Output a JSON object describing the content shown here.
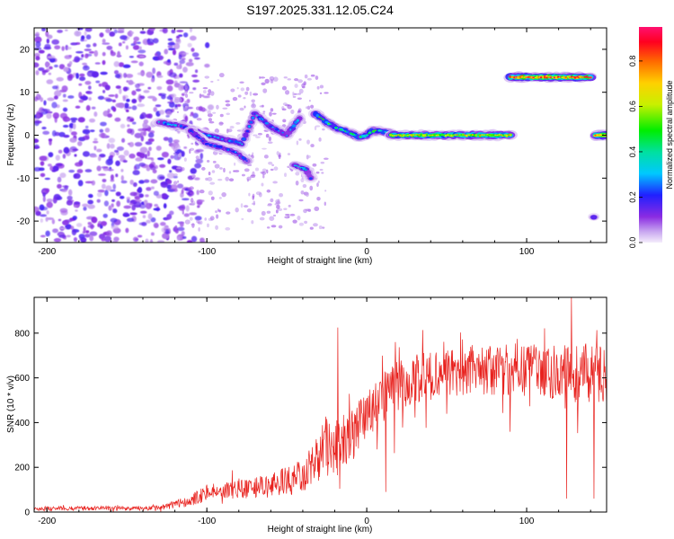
{
  "title": "S197.2025.331.12.05.C24",
  "chart_data": [
    {
      "type": "heatmap",
      "name": "spectrogram",
      "xlabel": "Height of straight line (km)",
      "ylabel": "Frequency (Hz)",
      "xlim": [
        -208,
        150
      ],
      "ylim": [
        -25,
        25
      ],
      "xticks": [
        -200,
        -100,
        0,
        100
      ],
      "yticks": [
        -20,
        -10,
        0,
        10,
        20
      ],
      "xtick_labels": [
        "-200",
        "-100",
        "0",
        "100"
      ],
      "ytick_labels": [
        "-20",
        "-10",
        "0",
        "10",
        "20"
      ],
      "colorbar": {
        "label": "Normalized spectral amplitude",
        "range": [
          0,
          0.95
        ],
        "ticks": [
          0.0,
          0.2,
          0.4,
          0.6,
          0.8
        ],
        "tick_labels": [
          "0.0",
          "0.2",
          "0.4",
          "0.6",
          "0.8"
        ]
      },
      "tracks": [
        {
          "name": "main-track",
          "x": [
            -130,
            -115,
            -100,
            -88,
            -78,
            -70,
            -60,
            -50,
            -42
          ],
          "y": [
            3,
            2,
            0,
            -1,
            -2,
            5,
            2,
            0,
            4
          ],
          "amplitude": 0.3
        },
        {
          "name": "descending-branch",
          "x": [
            -110,
            -100,
            -90,
            -82,
            -75
          ],
          "y": [
            1,
            -2,
            -3,
            -4,
            -6
          ],
          "amplitude": 0.25
        },
        {
          "name": "branch-left",
          "x": [
            -45,
            -38,
            -35
          ],
          "y": [
            -7,
            -8,
            -10
          ],
          "amplitude": 0.3
        },
        {
          "name": "carrier-rise",
          "x": [
            -32,
            -25,
            -18,
            -10,
            -5,
            0,
            3,
            8,
            15
          ],
          "y": [
            5,
            3,
            1.5,
            0.5,
            -0.5,
            0,
            1,
            1,
            0.5
          ],
          "amplitude": 0.45
        },
        {
          "name": "carrier-main",
          "x": [
            15,
            90
          ],
          "y": [
            0,
            0
          ],
          "amplitude": 0.65
        },
        {
          "name": "carrier-upper",
          "x": [
            90,
            140
          ],
          "y": [
            13.5,
            13.5
          ],
          "amplitude": 0.9
        },
        {
          "name": "carrier-edge",
          "x": [
            143,
            150
          ],
          "y": [
            0,
            0
          ],
          "amplitude": 0.85
        },
        {
          "name": "edge-blob",
          "x": [
            142
          ],
          "y": [
            -19
          ],
          "amplitude": 0.3
        }
      ],
      "noise_region": {
        "x": [
          -208,
          -120
        ],
        "y": [
          -25,
          25
        ],
        "amplitude": 0.15
      }
    },
    {
      "type": "line",
      "name": "snr",
      "xlabel": "Height of straight line (km)",
      "ylabel": "SNR (10 * v/v)",
      "xlim": [
        -208,
        150
      ],
      "ylim": [
        0,
        960
      ],
      "xticks": [
        -200,
        -100,
        0,
        100
      ],
      "yticks": [
        0,
        200,
        400,
        600,
        800
      ],
      "xtick_labels": [
        "-200",
        "-100",
        "0",
        "100"
      ],
      "ytick_labels": [
        "0",
        "200",
        "400",
        "600",
        "800"
      ],
      "color": "#e8221e",
      "envelope": {
        "x": [
          -208,
          -130,
          -110,
          -100,
          -80,
          -60,
          -40,
          -30,
          -25,
          -20,
          -10,
          0,
          10,
          20,
          30,
          50,
          70,
          90,
          110,
          130,
          150
        ],
        "mean": [
          15,
          18,
          50,
          90,
          105,
          120,
          160,
          240,
          300,
          280,
          340,
          430,
          500,
          560,
          600,
          620,
          640,
          640,
          630,
          620,
          620
        ],
        "amplitude": [
          10,
          10,
          25,
          40,
          45,
          55,
          75,
          110,
          140,
          130,
          110,
          110,
          120,
          120,
          110,
          110,
          120,
          120,
          120,
          130,
          130
        ]
      },
      "notable_points": [
        {
          "x": -18,
          "y": 825
        },
        {
          "x": -30,
          "y": 140
        },
        {
          "x": 12,
          "y": 90
        },
        {
          "x": 125,
          "y": 60
        },
        {
          "x": 142,
          "y": 60
        },
        {
          "x": 128,
          "y": 960
        }
      ]
    }
  ]
}
